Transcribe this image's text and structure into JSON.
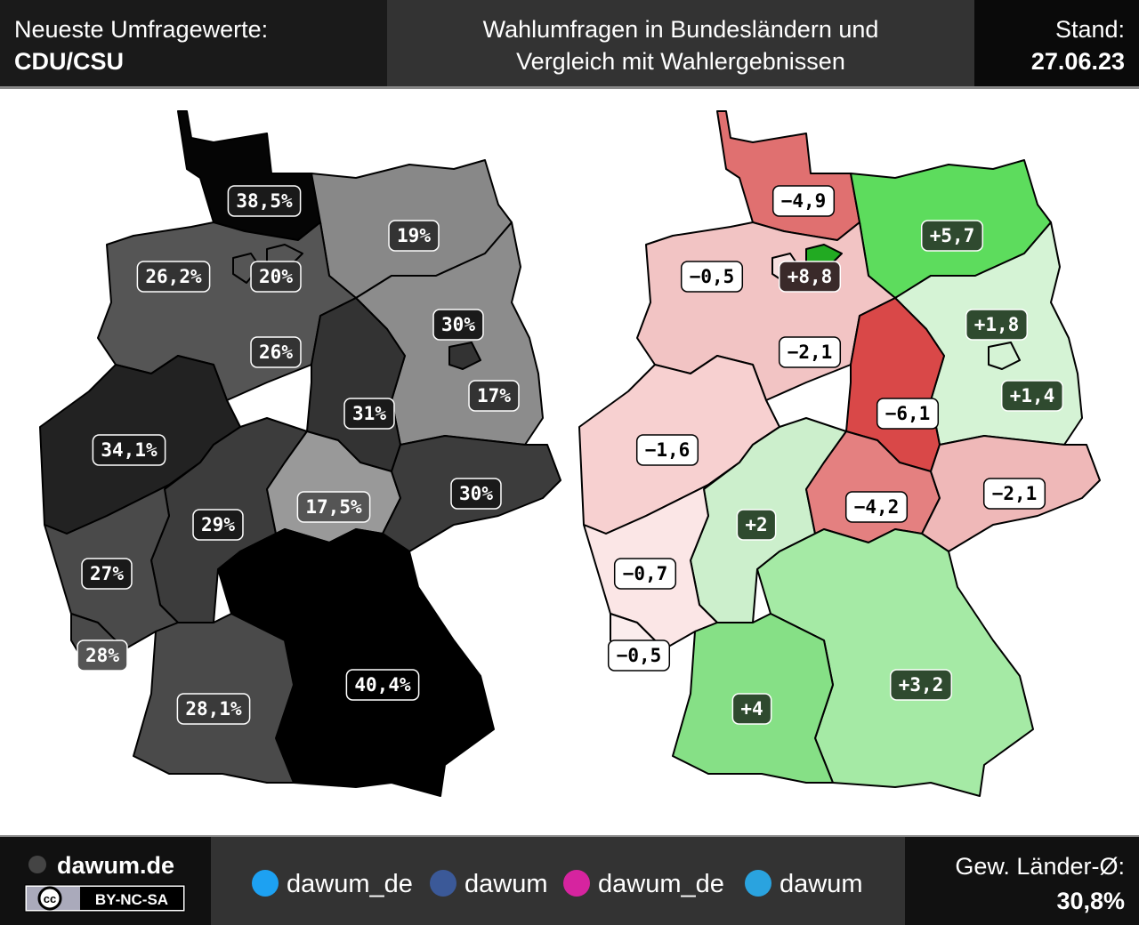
{
  "header": {
    "left_label": "Neueste Umfragewerte:",
    "party": "CDU/CSU",
    "title_line1": "Wahlumfragen in Bundesländern und",
    "title_line2": "Vergleich mit Wahlergebnissen",
    "date_label": "Stand:",
    "date": "27.06.23"
  },
  "left_map": {
    "labels": [
      "38,5%",
      "19%",
      "26,2%",
      "20%",
      "30%",
      "26%",
      "17%",
      "31%",
      "34,1%",
      "30%",
      "17,5%",
      "29%",
      "27%",
      "28%",
      "40,4%",
      "28,1%"
    ]
  },
  "right_map": {
    "labels": [
      "−4,9",
      "+5,7",
      "−0,5",
      "+8,8",
      "+1,8",
      "−2,1",
      "+1,4",
      "−6,1",
      "−1,6",
      "−2,1",
      "−4,2",
      "+2",
      "−0,7",
      "−0,5",
      "+3,2",
      "+4"
    ]
  },
  "footer": {
    "site": "dawum.de",
    "license_icon": "cc",
    "license": "BY-NC-SA",
    "social": [
      "dawum_de",
      "dawum",
      "dawum_de",
      "dawum"
    ],
    "average_label": "Gew. Länder-Ø:",
    "average": "30,8%"
  }
}
